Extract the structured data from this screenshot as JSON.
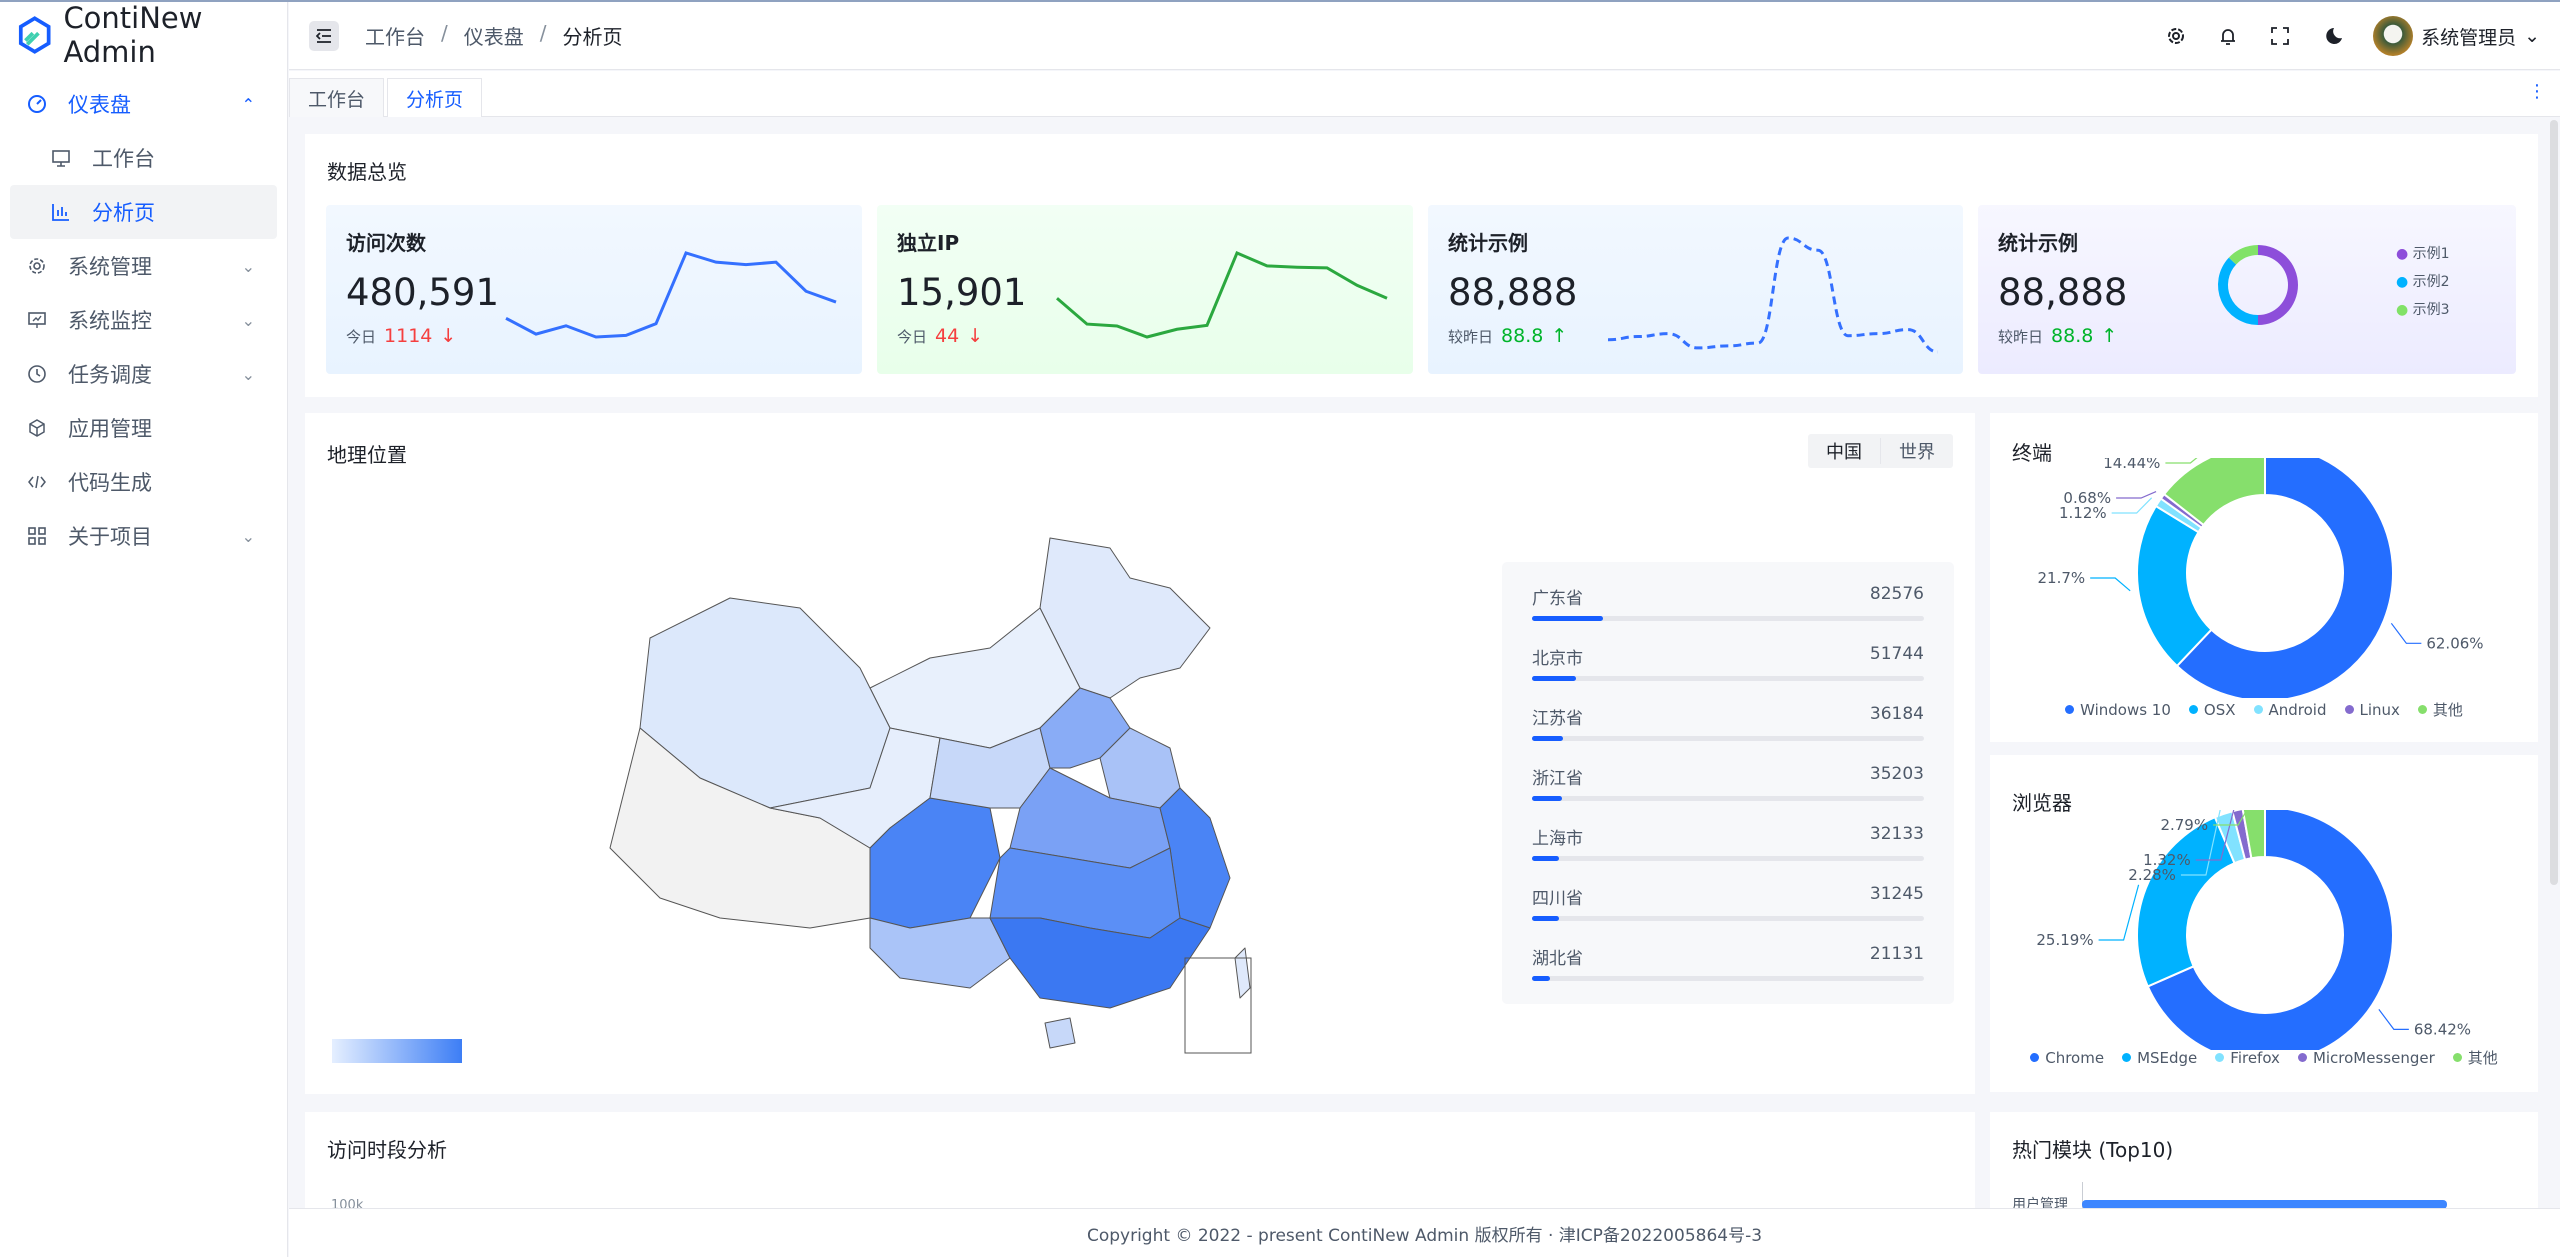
{
  "app": {
    "name": "ContiNew Admin"
  },
  "sidebar": {
    "items": [
      {
        "label": "仪表盘",
        "icon": "dashboard-icon",
        "expanded": true
      },
      {
        "label": "工作台",
        "icon": "desktop-icon"
      },
      {
        "label": "分析页",
        "icon": "bar-chart-icon",
        "selected": true
      },
      {
        "label": "系统管理",
        "icon": "gear-icon"
      },
      {
        "label": "系统监控",
        "icon": "monitor-icon"
      },
      {
        "label": "任务调度",
        "icon": "clock-icon"
      },
      {
        "label": "应用管理",
        "icon": "cube-icon"
      },
      {
        "label": "代码生成",
        "icon": "code-icon"
      },
      {
        "label": "关于项目",
        "icon": "apps-icon"
      }
    ]
  },
  "header": {
    "breadcrumb": [
      "工作台",
      "仪表盘",
      "分析页"
    ],
    "sep": "/",
    "user": "系统管理员"
  },
  "tabs": [
    {
      "label": "工作台"
    },
    {
      "label": "分析页",
      "active": true
    }
  ],
  "overview": {
    "title": "数据总览",
    "cards": [
      {
        "title": "访问次数",
        "value": "480,591",
        "sub_label": "今日",
        "sub_value": "1114",
        "trend": "down",
        "color": "#3470ff",
        "spark": [
          85,
          47,
          67,
          40,
          44,
          72,
          242,
          220,
          214,
          220,
          150,
          124
        ]
      },
      {
        "title": "独立IP",
        "value": "15,901",
        "sub_label": "今日",
        "sub_value": "44",
        "trend": "down",
        "color": "#2ba83f",
        "spark": [
          60,
          20,
          17,
          0,
          12,
          18,
          130,
          110,
          108,
          107,
          80,
          60
        ]
      },
      {
        "title": "统计示例",
        "value": "88,888",
        "sub_label": "较昨日",
        "sub_value": "88.8",
        "trend": "up",
        "color": "#3470ff",
        "spark": [
          40,
          48,
          55,
          20,
          25,
          32,
          290,
          260,
          50,
          55,
          65,
          10
        ]
      },
      {
        "title": "统计示例",
        "value": "88,888",
        "sub_label": "较昨日",
        "sub_value": "88.8",
        "trend": "up",
        "donut": [
          {
            "name": "示例1",
            "value": 50,
            "color": "#8d4eda"
          },
          {
            "name": "示例2",
            "value": 37,
            "color": "#00b2ff"
          },
          {
            "name": "示例3",
            "value": 13,
            "color": "#81e267"
          }
        ]
      }
    ]
  },
  "geo": {
    "title": "地理位置",
    "toggle": [
      "中国",
      "世界"
    ],
    "ranking": [
      {
        "name": "广东省",
        "value": 82576
      },
      {
        "name": "北京市",
        "value": 51744
      },
      {
        "name": "江苏省",
        "value": 36184
      },
      {
        "name": "浙江省",
        "value": 35203
      },
      {
        "name": "上海市",
        "value": 32133
      },
      {
        "name": "四川省",
        "value": 31245
      },
      {
        "name": "湖北省",
        "value": 21131
      }
    ]
  },
  "terminal": {
    "title": "终端",
    "chart_data": {
      "type": "pie",
      "series": [
        {
          "name": "Windows 10",
          "value": 62.06,
          "label": "62.06%",
          "color": "#246eff"
        },
        {
          "name": "OSX",
          "value": 21.7,
          "label": "21.7%",
          "color": "#00b2ff"
        },
        {
          "name": "Android",
          "value": 1.12,
          "label": "1.12%",
          "color": "#81e2ff"
        },
        {
          "name": "Linux",
          "value": 0.68,
          "label": "0.68%",
          "color": "#846bce"
        },
        {
          "name": "其他",
          "value": 14.44,
          "label": "14.44%",
          "color": "#86df6c"
        }
      ]
    }
  },
  "browser": {
    "title": "浏览器",
    "chart_data": {
      "type": "pie",
      "series": [
        {
          "name": "Chrome",
          "value": 68.42,
          "label": "68.42%",
          "color": "#246eff"
        },
        {
          "name": "MSEdge",
          "value": 25.19,
          "label": "25.19%",
          "color": "#00b2ff"
        },
        {
          "name": "Firefox",
          "value": 2.28,
          "label": "2.28%",
          "color": "#81e2ff"
        },
        {
          "name": "MicroMessenger",
          "value": 1.32,
          "label": "1.32%",
          "color": "#846bce"
        },
        {
          "name": "其他",
          "value": 2.79,
          "label": "2.79%",
          "color": "#86df6c"
        }
      ]
    }
  },
  "visits": {
    "title": "访问时段分析",
    "ytick": "100k"
  },
  "hot": {
    "title": "热门模块 (Top10)",
    "first": "用户管理"
  },
  "footer": "Copyright © 2022 - present ContiNew Admin 版权所有 · 津ICP备2022005864号-3"
}
